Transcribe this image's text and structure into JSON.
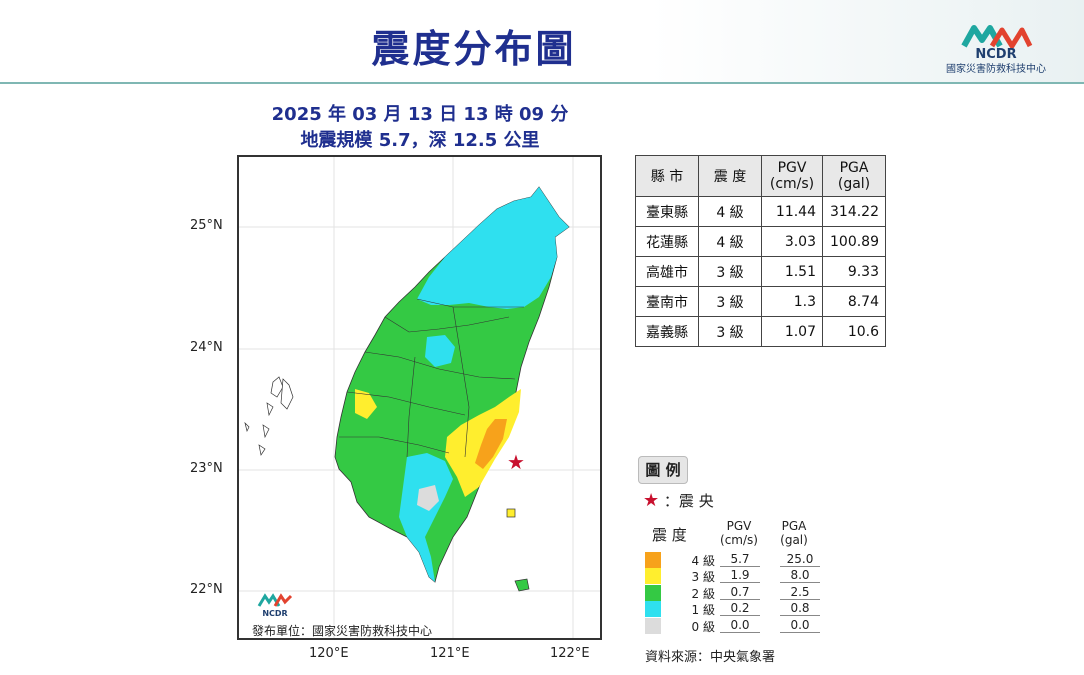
{
  "title": "震度分布圖",
  "org_logo": {
    "name": "NCDR",
    "subtitle": "國家災害防救科技中心"
  },
  "event": {
    "datetime": "2025 年 03 月 13 日 13 時 09 分",
    "magnitude_depth": "地震規模 5.7，深 12.5 公里"
  },
  "map": {
    "lat_labels": [
      "25°N",
      "24°N",
      "23°N",
      "22°N"
    ],
    "lon_labels": [
      "120°E",
      "121°E",
      "122°E"
    ],
    "publisher": "發布單位：國家災害防救科技中心",
    "mini_logo_text": "NCDR",
    "epicenter": {
      "lon": 121.54,
      "lat": 23.07
    },
    "colors": {
      "lv4": "#f7a21b",
      "lv3": "#ffee2e",
      "lv2": "#34c944",
      "lv1": "#2fe0ef",
      "lv0": "#dcdcdc",
      "epicenter": "#c8102e"
    }
  },
  "table": {
    "headers": {
      "county": "縣 市",
      "intensity": "震 度",
      "pgv": "PGV",
      "pgv_unit": "(cm/s)",
      "pga": "PGA",
      "pga_unit": "(gal)"
    },
    "rows": [
      {
        "county": "臺東縣",
        "intensity": "4 級",
        "pgv": "11.44",
        "pga": "314.22"
      },
      {
        "county": "花蓮縣",
        "intensity": "4 級",
        "pgv": "3.03",
        "pga": "100.89"
      },
      {
        "county": "高雄市",
        "intensity": "3 級",
        "pgv": "1.51",
        "pga": "9.33"
      },
      {
        "county": "臺南市",
        "intensity": "3 級",
        "pgv": "1.3",
        "pga": "8.74"
      },
      {
        "county": "嘉義縣",
        "intensity": "3 級",
        "pgv": "1.07",
        "pga": "10.6"
      }
    ]
  },
  "legend": {
    "title": "圖 例",
    "epicenter_label": "：震 央",
    "col_intensity": "震 度",
    "col_pgv": "PGV",
    "col_pgv_unit": "(cm/s)",
    "col_pga": "PGA",
    "col_pga_unit": "(gal)",
    "rows": [
      {
        "level": "4 級",
        "pgv": "5.7",
        "pga": "25.0",
        "color": "#f7a21b"
      },
      {
        "level": "3 級",
        "pgv": "1.9",
        "pga": "8.0",
        "color": "#ffee2e"
      },
      {
        "level": "2 級",
        "pgv": "0.7",
        "pga": "2.5",
        "color": "#34c944"
      },
      {
        "level": "1 級",
        "pgv": "0.2",
        "pga": "0.8",
        "color": "#2fe0ef"
      },
      {
        "level": "0 級",
        "pgv": "0.0",
        "pga": "0.0",
        "color": "#dcdcdc"
      }
    ],
    "source": "資料來源：中央氣象署"
  }
}
